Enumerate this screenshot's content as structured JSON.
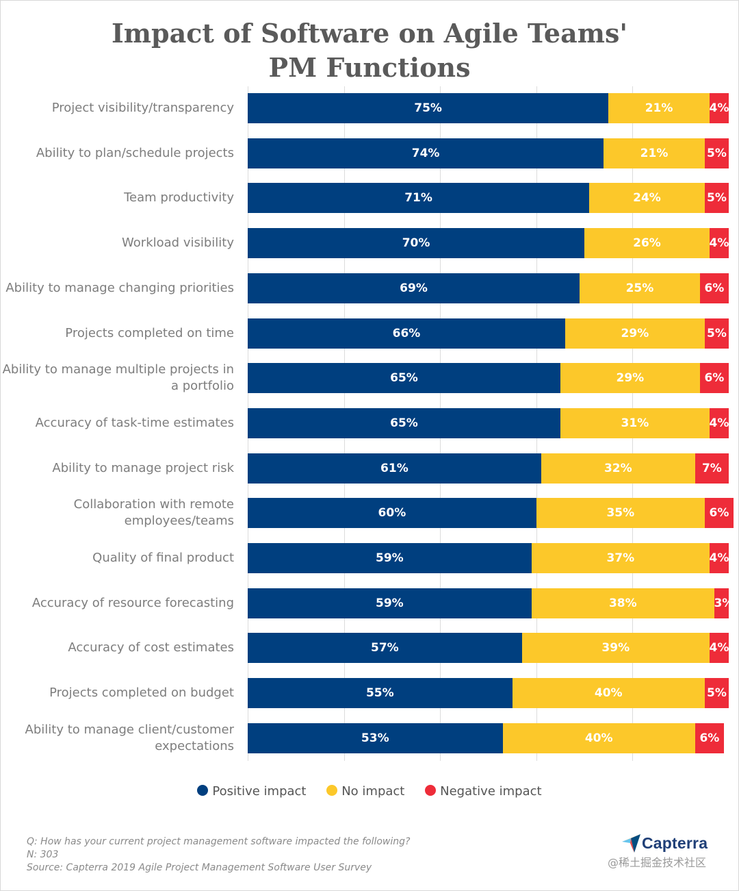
{
  "title_lines": [
    "Impact of Software on Agile Teams'",
    "PM Functions"
  ],
  "colors": {
    "positive": "#003f7f",
    "none": "#fcc82a",
    "negative": "#ee2c39",
    "brand": "#1f3f77"
  },
  "chart_data": {
    "type": "bar",
    "orientation": "horizontal",
    "stacked": true,
    "value_unit": "%",
    "xlim": [
      0,
      100
    ],
    "categories": [
      "Project visibility/transparency",
      "Ability to plan/schedule projects",
      "Team productivity",
      "Workload visibility",
      "Ability to manage changing priorities",
      "Projects completed on time",
      "Ability to manage multiple projects in a portfolio",
      "Accuracy of task-time estimates",
      "Ability to manage project risk",
      "Collaboration with remote employees/teams",
      "Quality of final product",
      "Accuracy of resource forecasting",
      "Accuracy of cost estimates",
      "Projects completed on budget",
      "Ability to manage client/customer expectations"
    ],
    "category_label_lines": [
      [
        "Project visibility/transparency"
      ],
      [
        "Ability to plan/schedule projects"
      ],
      [
        "Team productivity"
      ],
      [
        "Workload visibility"
      ],
      [
        "Ability to manage changing priorities"
      ],
      [
        "Projects completed on time"
      ],
      [
        "Ability to manage multiple projects in",
        "a portfolio"
      ],
      [
        "Accuracy of task-time estimates"
      ],
      [
        "Ability to manage project risk"
      ],
      [
        "Collaboration with remote",
        "employees/teams"
      ],
      [
        "Quality of final product"
      ],
      [
        "Accuracy of resource forecasting"
      ],
      [
        "Accuracy of cost estimates"
      ],
      [
        "Projects completed on budget"
      ],
      [
        "Ability to manage client/customer",
        "expectations"
      ]
    ],
    "series": [
      {
        "name": "Positive impact",
        "color": "#003f7f",
        "values": [
          75,
          74,
          71,
          70,
          69,
          66,
          65,
          65,
          61,
          60,
          59,
          59,
          57,
          55,
          53
        ]
      },
      {
        "name": "No impact",
        "color": "#fcc82a",
        "values": [
          21,
          21,
          24,
          26,
          25,
          29,
          29,
          31,
          32,
          35,
          37,
          38,
          39,
          40,
          40
        ]
      },
      {
        "name": "Negative impact",
        "color": "#ee2c39",
        "values": [
          4,
          5,
          5,
          4,
          6,
          5,
          6,
          4,
          7,
          6,
          4,
          3,
          4,
          5,
          6
        ]
      }
    ],
    "legend_position": "bottom"
  },
  "notes": {
    "question": "Q: How has your current project management software impacted the following?",
    "sample": "N: 303",
    "source": "Source: Capterra 2019 Agile Project Management Software User Survey"
  },
  "brand": {
    "logo_text": "Capterra",
    "logo_icon": "capterra-arrow-icon"
  },
  "watermark": "@稀土掘金技术社区"
}
